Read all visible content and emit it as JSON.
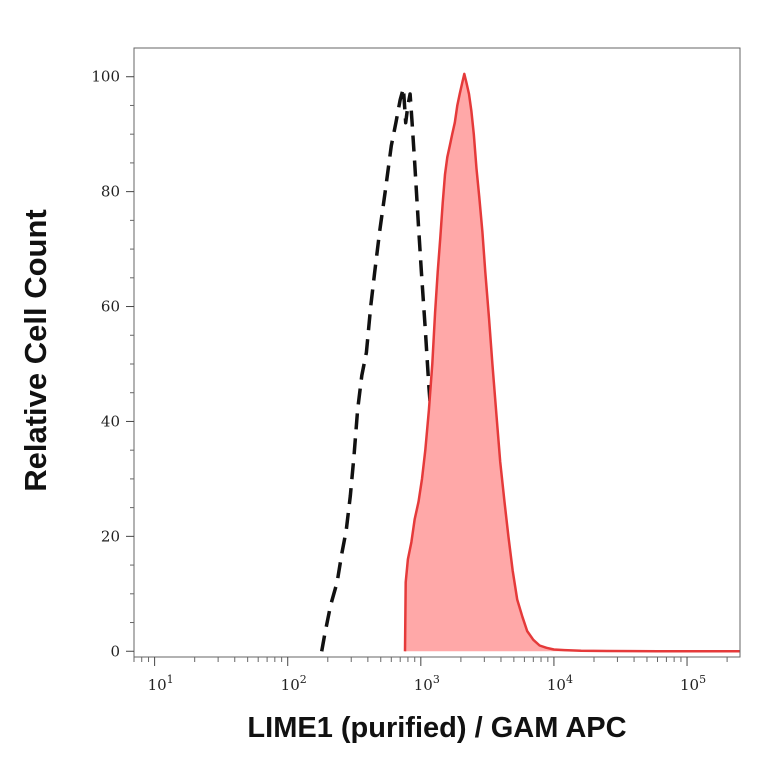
{
  "chart_data": {
    "type": "area",
    "xlabel": "LIME1 (purified) / GAM APC",
    "ylabel": "Relative Cell Count",
    "x_scale": "log",
    "xlim": [
      7,
      250000
    ],
    "ylim": [
      -1,
      105
    ],
    "y_ticks": [
      "0",
      "20",
      "40",
      "60",
      "80",
      "100"
    ],
    "x_ticks": [
      {
        "base": "10",
        "exp": "1",
        "value": 10
      },
      {
        "base": "10",
        "exp": "2",
        "value": 100
      },
      {
        "base": "10",
        "exp": "3",
        "value": 1000
      },
      {
        "base": "10",
        "exp": "4",
        "value": 10000
      },
      {
        "base": "10",
        "exp": "5",
        "value": 100000
      }
    ],
    "grid": false,
    "series": [
      {
        "style": "dashed",
        "color": "#111111",
        "points": [
          [
            180,
            0
          ],
          [
            190,
            3
          ],
          [
            210,
            8
          ],
          [
            235,
            12
          ],
          [
            255,
            17
          ],
          [
            275,
            21
          ],
          [
            295,
            27
          ],
          [
            315,
            34
          ],
          [
            335,
            42
          ],
          [
            360,
            48
          ],
          [
            390,
            52
          ],
          [
            420,
            60
          ],
          [
            450,
            66
          ],
          [
            490,
            73
          ],
          [
            540,
            80
          ],
          [
            600,
            88
          ],
          [
            650,
            92
          ],
          [
            700,
            96
          ],
          [
            740,
            98
          ],
          [
            770,
            92
          ],
          [
            800,
            95
          ],
          [
            830,
            97
          ],
          [
            860,
            92
          ],
          [
            900,
            85
          ],
          [
            960,
            74
          ],
          [
            1010,
            66
          ],
          [
            1080,
            56
          ],
          [
            1150,
            46
          ],
          [
            1240,
            36
          ],
          [
            1340,
            25
          ],
          [
            1450,
            16
          ],
          [
            1550,
            9
          ],
          [
            1650,
            4
          ],
          [
            1750,
            1.5
          ],
          [
            1850,
            0
          ]
        ]
      },
      {
        "style": "filled",
        "color": "#e53a3a",
        "fill": "#ffa8a8",
        "points": [
          [
            760,
            0
          ],
          [
            770,
            12
          ],
          [
            800,
            16
          ],
          [
            850,
            19
          ],
          [
            900,
            23
          ],
          [
            960,
            26
          ],
          [
            1020,
            30
          ],
          [
            1080,
            35
          ],
          [
            1150,
            42
          ],
          [
            1220,
            50
          ],
          [
            1280,
            59
          ],
          [
            1340,
            66
          ],
          [
            1400,
            72
          ],
          [
            1460,
            78
          ],
          [
            1520,
            83
          ],
          [
            1580,
            86
          ],
          [
            1650,
            88
          ],
          [
            1720,
            90
          ],
          [
            1800,
            92
          ],
          [
            1880,
            95
          ],
          [
            1960,
            97
          ],
          [
            2050,
            99
          ],
          [
            2120,
            100.5
          ],
          [
            2200,
            99
          ],
          [
            2300,
            97
          ],
          [
            2400,
            94
          ],
          [
            2500,
            90
          ],
          [
            2620,
            84
          ],
          [
            2750,
            79
          ],
          [
            2900,
            73
          ],
          [
            3050,
            66
          ],
          [
            3250,
            58
          ],
          [
            3450,
            50
          ],
          [
            3700,
            41
          ],
          [
            3950,
            33
          ],
          [
            4250,
            26
          ],
          [
            4550,
            20
          ],
          [
            4900,
            14
          ],
          [
            5300,
            9
          ],
          [
            5800,
            6
          ],
          [
            6300,
            3.5
          ],
          [
            7000,
            2
          ],
          [
            7800,
            1
          ],
          [
            8800,
            0.6
          ],
          [
            10000,
            0.3
          ],
          [
            12000,
            0.2
          ],
          [
            16000,
            0.1
          ],
          [
            25000,
            0.05
          ],
          [
            60000,
            0
          ],
          [
            250000,
            0
          ]
        ]
      }
    ]
  }
}
